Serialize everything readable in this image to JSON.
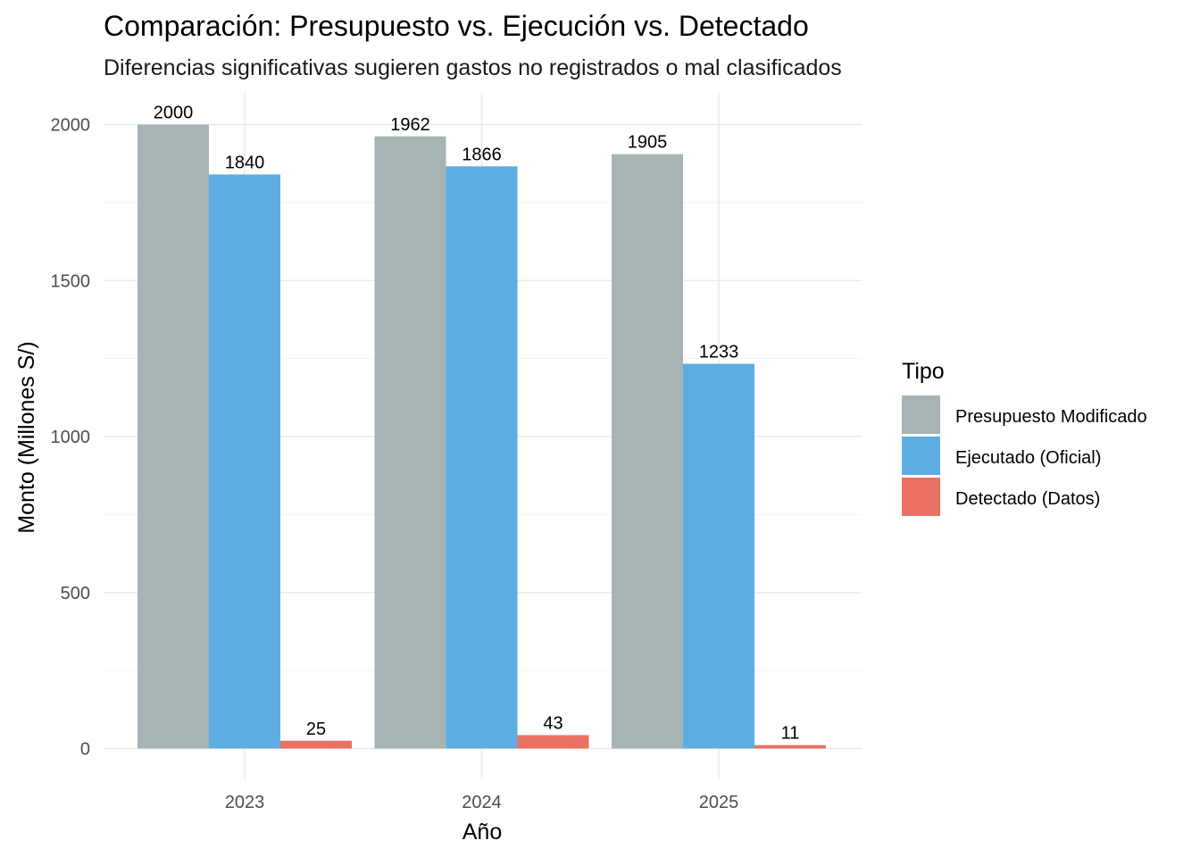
{
  "chart_data": {
    "type": "bar",
    "title": "Comparación: Presupuesto vs. Ejecución vs. Detectado",
    "subtitle": "Diferencias significativas sugieren gastos no registrados o mal clasificados",
    "xlabel": "Año",
    "ylabel": "Monto (Millones S/)",
    "categories": [
      "2023",
      "2024",
      "2025"
    ],
    "ylim": [
      0,
      2100
    ],
    "yticks": [
      0,
      500,
      1000,
      1500,
      2000
    ],
    "grid": true,
    "legend_position": "right",
    "legend_title": "Tipo",
    "series": [
      {
        "name": "Presupuesto Modificado",
        "color": "#a7b4b5",
        "values": [
          2000,
          1962,
          1905
        ]
      },
      {
        "name": "Ejecutado (Oficial)",
        "color": "#5dade2",
        "values": [
          1840,
          1866,
          1233
        ]
      },
      {
        "name": "Detectado (Datos)",
        "color": "#ec7063",
        "values": [
          25,
          43,
          11
        ]
      }
    ]
  }
}
